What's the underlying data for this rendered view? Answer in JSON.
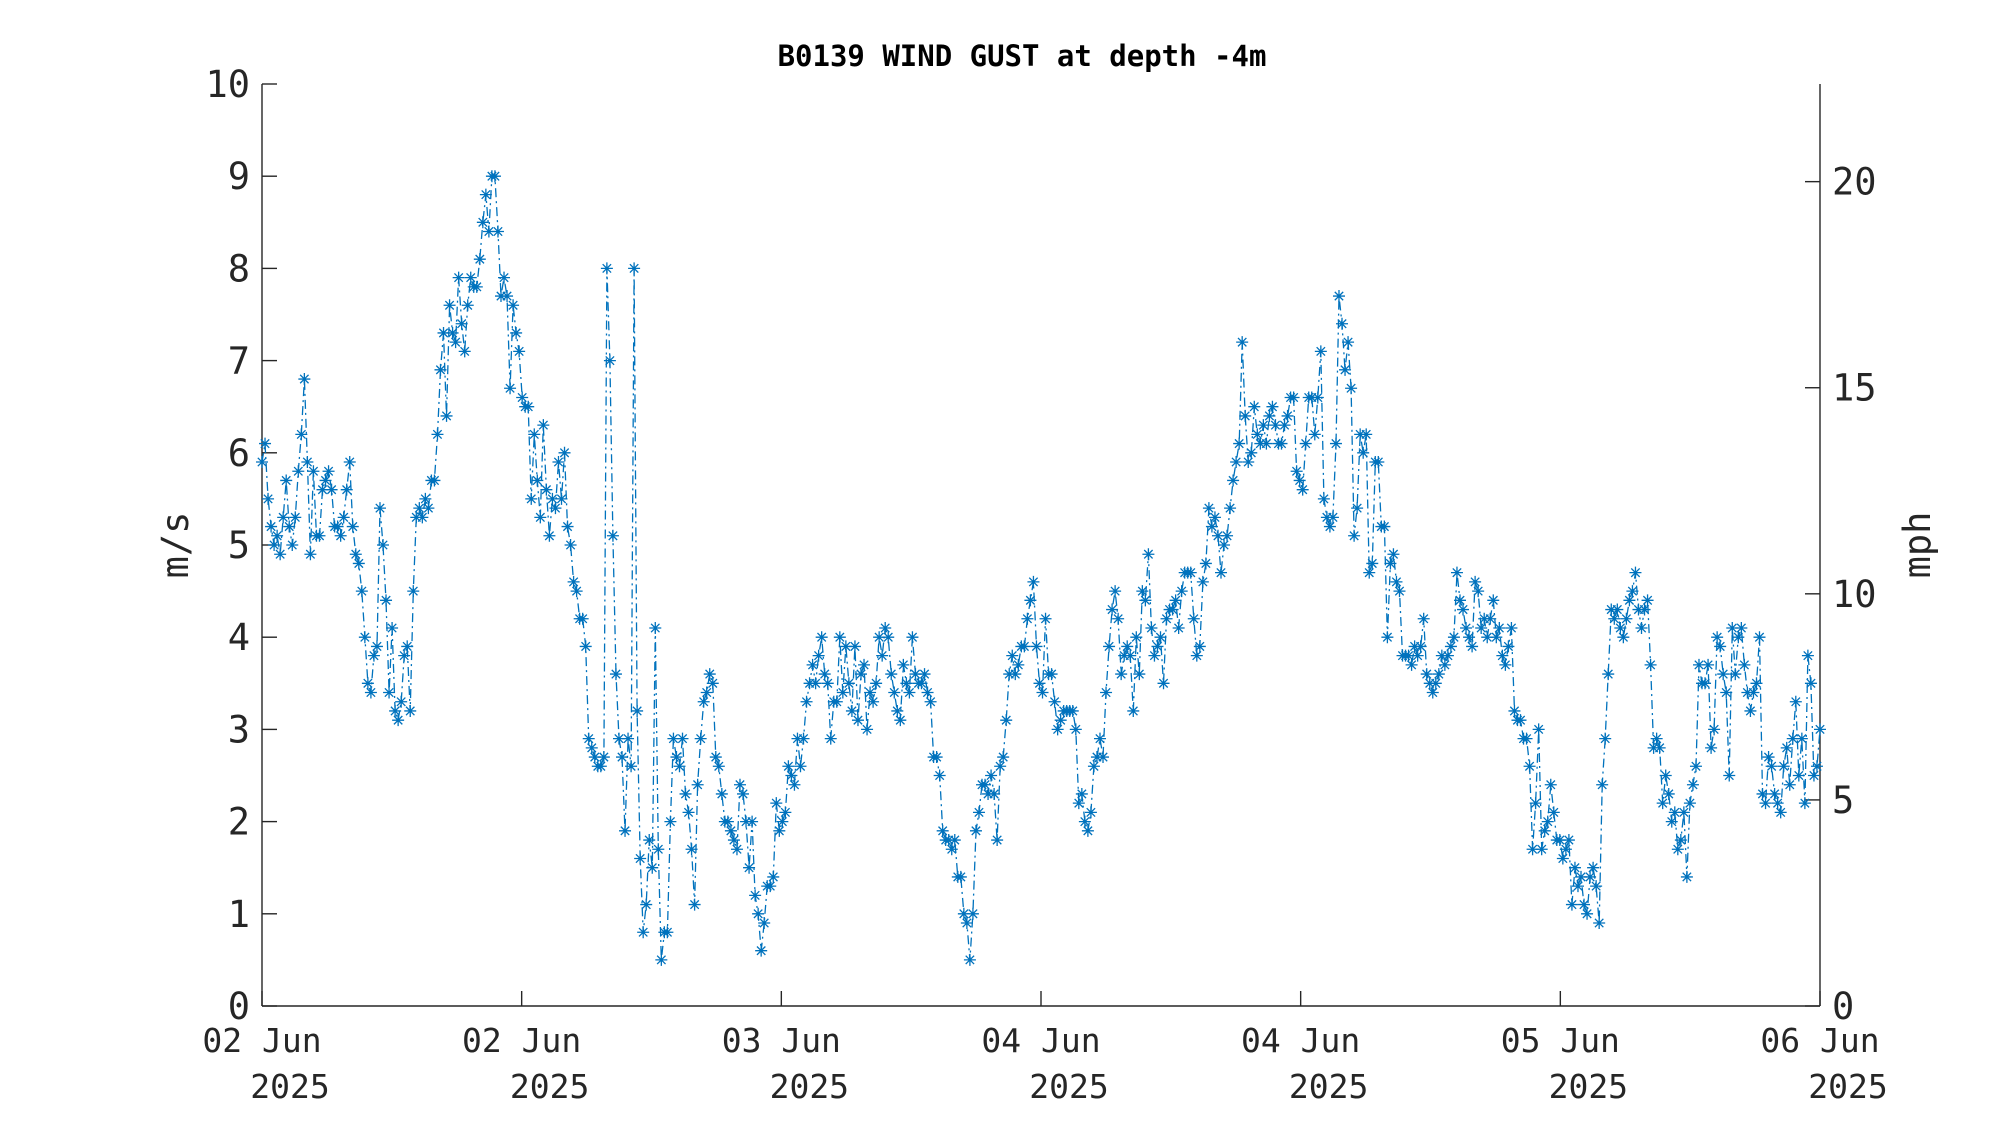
{
  "chart_data": {
    "type": "line",
    "title": "B0139 WIND GUST at depth -4m",
    "ylabel": "m/s",
    "ylabel_right": "mph",
    "ylim": [
      0,
      10
    ],
    "ylim_right": [
      0,
      22.369
    ],
    "yticks": [
      0,
      1,
      2,
      3,
      4,
      5,
      6,
      7,
      8,
      9,
      10
    ],
    "yticks_right": [
      0,
      5,
      10,
      15,
      20
    ],
    "xlim": [
      "2025-06-02T00:00",
      "2025-06-06T00:00"
    ],
    "xtick_labels": [
      {
        "day": "02 Jun",
        "year": "2025"
      },
      {
        "day": "02 Jun",
        "year": "2025"
      },
      {
        "day": "03 Jun",
        "year": "2025"
      },
      {
        "day": "04 Jun",
        "year": "2025"
      },
      {
        "day": "04 Jun",
        "year": "2025"
      },
      {
        "day": "05 Jun",
        "year": "2025"
      },
      {
        "day": "06 Jun",
        "year": "2025"
      }
    ],
    "grid": false,
    "line_style": "dash-dot",
    "marker": "asterisk",
    "color": "#0072BD",
    "series": [
      {
        "values": [
          5.9,
          6.1,
          5.5,
          5.2,
          5.0,
          5.1,
          4.9,
          5.3,
          5.7,
          5.2,
          5.0,
          5.3,
          5.8,
          6.2,
          6.8,
          5.9,
          4.9,
          5.8,
          5.1,
          5.1,
          5.6,
          5.7,
          5.8,
          5.6,
          5.2,
          5.2,
          5.1,
          5.3,
          5.6,
          5.9,
          5.2,
          4.9,
          4.8,
          4.5,
          4.0,
          3.5,
          3.4,
          3.8,
          3.9,
          5.4,
          5.0,
          4.4,
          3.4,
          4.1,
          3.2,
          3.1,
          3.3,
          3.8,
          3.9,
          3.2,
          4.5,
          5.3,
          5.4,
          5.3,
          5.5,
          5.4,
          5.7,
          5.7,
          6.2,
          6.9,
          7.3,
          6.4,
          7.6,
          7.3,
          7.2,
          7.9,
          7.4,
          7.1,
          7.6,
          7.9,
          7.8,
          7.8,
          8.1,
          8.5,
          8.8,
          8.4,
          9.0,
          9.0,
          8.4,
          7.7,
          7.9,
          7.7,
          6.7,
          7.6,
          7.3,
          7.1,
          6.6,
          6.5,
          6.5,
          5.5,
          6.2,
          5.7,
          5.3,
          6.3,
          5.6,
          5.1,
          5.5,
          5.4,
          5.9,
          5.5,
          6.0,
          5.2,
          5.0,
          4.6,
          4.5,
          4.2,
          4.2,
          3.9,
          2.9,
          2.8,
          2.7,
          2.6,
          2.6,
          2.7,
          8.0,
          7.0,
          5.1,
          3.6,
          2.9,
          2.7,
          1.9,
          2.9,
          2.6,
          8.0,
          3.2,
          1.6,
          0.8,
          1.1,
          1.8,
          1.5,
          4.1,
          1.7,
          0.5,
          0.8,
          0.8,
          2.0,
          2.9,
          2.7,
          2.6,
          2.9,
          2.3,
          2.1,
          1.7,
          1.1,
          2.4,
          2.9,
          3.3,
          3.4,
          3.6,
          3.5,
          2.7,
          2.6,
          2.3,
          2.0,
          2.0,
          1.9,
          1.8,
          1.7,
          2.4,
          2.3,
          2.0,
          1.5,
          2.0,
          1.2,
          1.0,
          0.6,
          0.9,
          1.3,
          1.3,
          1.4,
          2.2,
          1.9,
          2.0,
          2.1,
          2.6,
          2.5,
          2.4,
          2.9,
          2.6,
          2.9,
          3.3,
          3.5,
          3.7,
          3.5,
          3.8,
          4.0,
          3.6,
          3.5,
          2.9,
          3.3,
          3.3,
          4.0,
          3.4,
          3.9,
          3.5,
          3.2,
          3.9,
          3.1,
          3.6,
          3.7,
          3.0,
          3.4,
          3.3,
          3.5,
          4.0,
          3.8,
          4.1,
          4.0,
          3.6,
          3.4,
          3.2,
          3.1,
          3.7,
          3.5,
          3.4,
          4.0,
          3.6,
          3.5,
          3.5,
          3.6,
          3.4,
          3.3,
          2.7,
          2.7,
          2.5,
          1.9,
          1.8,
          1.8,
          1.7,
          1.8,
          1.4,
          1.4,
          1.0,
          0.9,
          0.5,
          1.0,
          1.9,
          2.1,
          2.4,
          2.4,
          2.3,
          2.5,
          2.3,
          1.8,
          2.6,
          2.7,
          3.1,
          3.6,
          3.8,
          3.6,
          3.7,
          3.9,
          3.9,
          4.2,
          4.4,
          4.6,
          3.9,
          3.5,
          3.4,
          4.2,
          3.6,
          3.6,
          3.3,
          3.0,
          3.1,
          3.2,
          3.2,
          3.2,
          3.2,
          3.0,
          2.2,
          2.3,
          2.0,
          1.9,
          2.1,
          2.6,
          2.7,
          2.9,
          2.7,
          3.4,
          3.9,
          4.3,
          4.5,
          4.2,
          3.6,
          3.8,
          3.9,
          3.8,
          3.2,
          4.0,
          3.6,
          4.5,
          4.4,
          4.9,
          4.1,
          3.8,
          3.9,
          4.0,
          3.5,
          4.2,
          4.3,
          4.3,
          4.4,
          4.1,
          4.5,
          4.7,
          4.7,
          4.7,
          4.2,
          3.8,
          3.9,
          4.6,
          4.8,
          5.4,
          5.2,
          5.3,
          5.1,
          4.7,
          5.0,
          5.1,
          5.4,
          5.7,
          5.9,
          6.1,
          7.2,
          6.4,
          5.9,
          6.0,
          6.5,
          6.2,
          6.1,
          6.3,
          6.1,
          6.4,
          6.5,
          6.3,
          6.1,
          6.1,
          6.3,
          6.4,
          6.6,
          6.6,
          5.8,
          5.7,
          5.6,
          6.1,
          6.6,
          6.6,
          6.2,
          6.6,
          7.1,
          5.5,
          5.3,
          5.2,
          5.3,
          6.1,
          7.7,
          7.4,
          6.9,
          7.2,
          6.7,
          5.1,
          5.4,
          6.2,
          6.0,
          6.2,
          4.7,
          4.8,
          5.9,
          5.9,
          5.2,
          5.2,
          4.0,
          4.8,
          4.9,
          4.6,
          4.5,
          3.8,
          3.8,
          3.8,
          3.7,
          3.9,
          3.8,
          3.9,
          4.2,
          3.6,
          3.5,
          3.4,
          3.5,
          3.6,
          3.8,
          3.7,
          3.8,
          3.9,
          4.0,
          4.7,
          4.4,
          4.3,
          4.1,
          4.0,
          3.9,
          4.6,
          4.5,
          4.1,
          4.2,
          4.0,
          4.2,
          4.4,
          4.0,
          4.1,
          3.8,
          3.7,
          3.9,
          4.1,
          3.2,
          3.1,
          3.1,
          2.9,
          2.9,
          2.6,
          1.7,
          2.2,
          3.0,
          1.7,
          1.9,
          2.0,
          2.4,
          2.1,
          1.8,
          1.8,
          1.6,
          1.7,
          1.8,
          1.1,
          1.5,
          1.3,
          1.4,
          1.1,
          1.0,
          1.4,
          1.5,
          1.3,
          0.9,
          2.4,
          2.9,
          3.6,
          4.3,
          4.2,
          4.3,
          4.1,
          4.0,
          4.2,
          4.4,
          4.5,
          4.7,
          4.3,
          4.1,
          4.3,
          4.4,
          3.7,
          2.8,
          2.9,
          2.8,
          2.2,
          2.5,
          2.3,
          2.0,
          2.1,
          1.7,
          1.8,
          2.1,
          1.4,
          2.2,
          2.4,
          2.6,
          3.7,
          3.5,
          3.5,
          3.7,
          2.8,
          3.0,
          4.0,
          3.9,
          3.6,
          3.4,
          2.5,
          4.1,
          3.6,
          4.0,
          4.1,
          3.7,
          3.4,
          3.2,
          3.4,
          3.5,
          4.0,
          2.3,
          2.2,
          2.7,
          2.6,
          2.3,
          2.2,
          2.1,
          2.6,
          2.8,
          2.4,
          2.9,
          3.3,
          2.5,
          2.9,
          2.2,
          3.8,
          3.5,
          2.5,
          2.6,
          3.0
        ]
      }
    ]
  }
}
